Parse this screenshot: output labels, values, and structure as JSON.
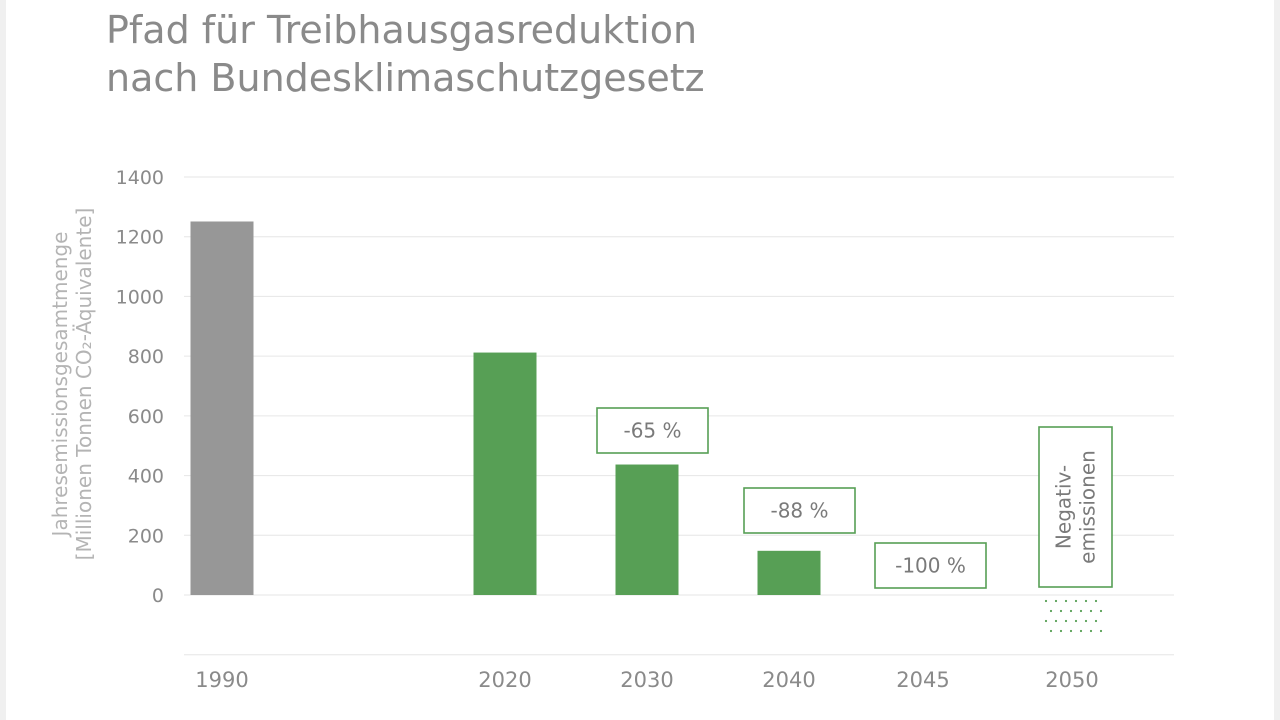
{
  "title_line1": "Pfad für Treibhausgasreduktion",
  "title_line2": "nach Bundesklimaschutzgesetz",
  "ylabel_line1": "Jahresemissionsgesamtmenge",
  "ylabel_line2": "[Millionen Tonnen CO₂-Äquivalente]",
  "colors": {
    "historic": "#979797",
    "target": "#579f55",
    "grid": "#e6e6e6",
    "tick_text": "#8a8a8a",
    "annotation_border": "#579f55",
    "annotation_text": "#7a7a7a"
  },
  "chart_data": {
    "type": "bar",
    "categories": [
      "1990",
      "2020",
      "2030",
      "2040",
      "2045",
      "2050"
    ],
    "values": [
      1251,
      812,
      437,
      148,
      0,
      null
    ],
    "bar_colors": [
      "historic",
      "target",
      "target",
      "target",
      "target",
      "target"
    ],
    "yticks": [
      0,
      200,
      400,
      600,
      800,
      1000,
      1200,
      1400
    ],
    "ylim": [
      -200,
      1400
    ],
    "grid": true,
    "annotations": [
      {
        "category": "2030",
        "text": "-65 %"
      },
      {
        "category": "2040",
        "text": "-88 %"
      },
      {
        "category": "2045",
        "text": "-100 %"
      },
      {
        "category": "2050",
        "text": "Negativ-\nemissionen",
        "vertical": true
      }
    ],
    "negative_emissions_hint": {
      "category": "2050",
      "style": "dotted"
    }
  }
}
